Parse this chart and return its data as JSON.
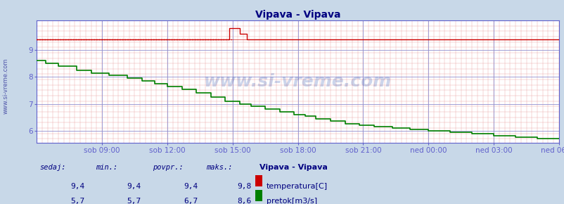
{
  "title": "Vipava - Vipava",
  "title_color": "#000080",
  "bg_color": "#c8d8e8",
  "plot_bg_color": "#ffffff",
  "grid_major_color": "#9090d0",
  "grid_minor_color": "#e8a0a0",
  "axis_color": "#6060cc",
  "xlim": [
    0,
    288
  ],
  "ylim": [
    5.55,
    10.1
  ],
  "yticks": [
    6,
    7,
    8,
    9
  ],
  "xtick_labels": [
    "sob 09:00",
    "sob 12:00",
    "sob 15:00",
    "sob 18:00",
    "sob 21:00",
    "ned 00:00",
    "ned 03:00",
    "ned 06:00"
  ],
  "xtick_positions": [
    36,
    72,
    108,
    144,
    180,
    216,
    252,
    288
  ],
  "temp_color": "#cc0000",
  "flow_color": "#008000",
  "watermark": "www.si-vreme.com",
  "table_headers": [
    "sedaj:",
    "min.:",
    "povpr.:",
    "maks.:"
  ],
  "series1_label": "temperatura[C]",
  "series2_label": "pretok[m3/s]",
  "series_title": "Vipava - Vipava",
  "temp_sedaj": "9,4",
  "temp_min": "9,4",
  "temp_povpr": "9,4",
  "temp_maks": "9,8",
  "flow_sedaj": "5,7",
  "flow_min": "5,7",
  "flow_povpr": "6,7",
  "flow_maks": "8,6"
}
